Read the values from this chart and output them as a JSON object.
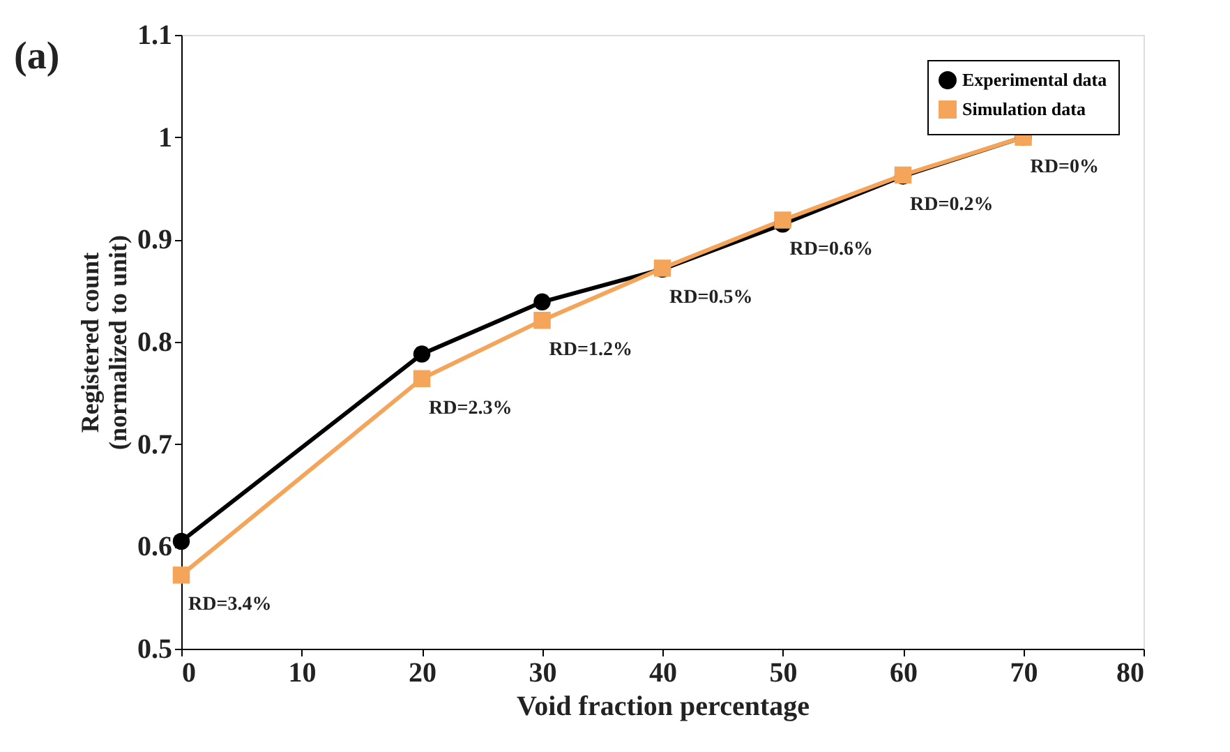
{
  "chart_data": {
    "type": "line",
    "title": "(a)",
    "xlabel": "Void fraction percentage",
    "ylabel": "Registered count (normalized to unit)",
    "x": [
      0,
      20,
      30,
      40,
      50,
      60,
      70
    ],
    "series": [
      {
        "name": "Experimental data",
        "color": "#000000",
        "marker": "circle",
        "values": [
          0.605,
          0.788,
          0.839,
          0.871,
          0.915,
          0.962,
          1.0
        ]
      },
      {
        "name": "Simulation data",
        "color": "#f5a55a",
        "marker": "square",
        "values": [
          0.572,
          0.764,
          0.821,
          0.872,
          0.919,
          0.963,
          1.0
        ]
      }
    ],
    "annotations": [
      {
        "text": "RD=3.4%",
        "x": 0,
        "y": 0.572
      },
      {
        "text": "RD=2.3%",
        "x": 20,
        "y": 0.764
      },
      {
        "text": "RD=1.2%",
        "x": 30,
        "y": 0.821
      },
      {
        "text": "RD=0.5%",
        "x": 40,
        "y": 0.872
      },
      {
        "text": "RD=0.6%",
        "x": 50,
        "y": 0.919
      },
      {
        "text": "RD=0.2%",
        "x": 60,
        "y": 0.963
      },
      {
        "text": "RD=0%",
        "x": 70,
        "y": 1.0
      }
    ],
    "xlim": [
      0,
      80
    ],
    "xticks": [
      0,
      10,
      20,
      30,
      40,
      50,
      60,
      70,
      80
    ],
    "ylim": [
      0.5,
      1.1
    ],
    "yticks": [
      0.5,
      0.6,
      0.7,
      0.8,
      0.9,
      {
        "value": 1.0,
        "label": "1"
      },
      1.1
    ],
    "grid": false,
    "legend": "top right",
    "line_style": "solid"
  }
}
